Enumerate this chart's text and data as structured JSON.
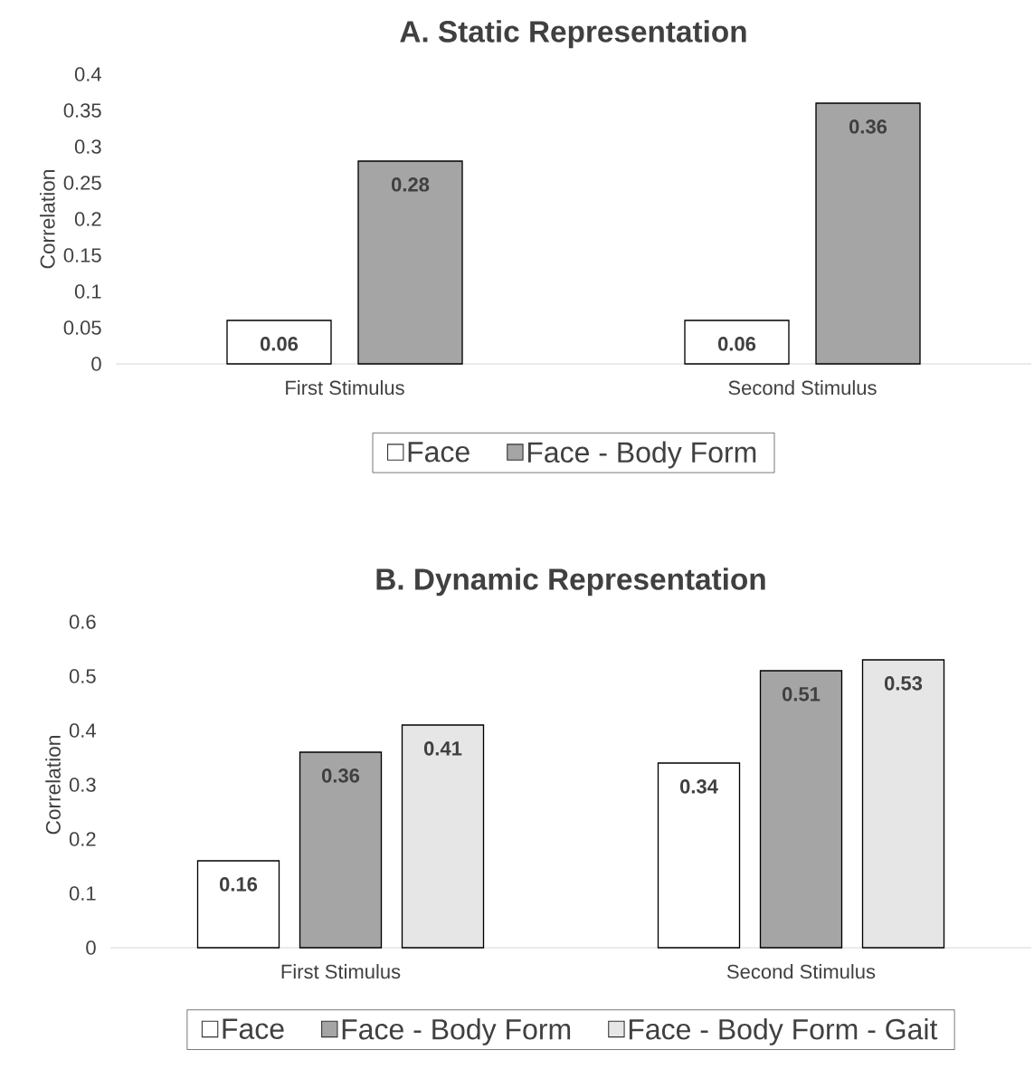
{
  "chart_data": [
    {
      "type": "bar",
      "title": "A. Static Representation",
      "ylabel": "Correlation",
      "categories": [
        "First Stimulus",
        "Second Stimulus"
      ],
      "series": [
        {
          "name": "Face",
          "color": "#ffffff",
          "values": [
            0.06,
            0.06
          ]
        },
        {
          "name": "Face - Body Form",
          "color": "#a5a5a5",
          "values": [
            0.28,
            0.36
          ]
        }
      ],
      "ylim": [
        0,
        0.4
      ],
      "yticks": [
        0,
        0.05,
        0.1,
        0.15,
        0.2,
        0.25,
        0.3,
        0.35,
        0.4
      ],
      "data_labels": true,
      "legend": "bottom",
      "grid": false
    },
    {
      "type": "bar",
      "title": "B. Dynamic Representation",
      "ylabel": "Correlation",
      "categories": [
        "First Stimulus",
        "Second Stimulus"
      ],
      "series": [
        {
          "name": "Face",
          "color": "#ffffff",
          "values": [
            0.16,
            0.34
          ]
        },
        {
          "name": "Face - Body Form",
          "color": "#a5a5a5",
          "values": [
            0.36,
            0.51
          ]
        },
        {
          "name": "Face - Body Form - Gait",
          "color": "#e7e6e6",
          "values": [
            0.41,
            0.53
          ]
        }
      ],
      "ylim": [
        0,
        0.6
      ],
      "yticks": [
        0,
        0.1,
        0.2,
        0.3,
        0.4,
        0.5,
        0.6
      ],
      "data_labels": true,
      "legend": "bottom",
      "grid": false
    }
  ]
}
